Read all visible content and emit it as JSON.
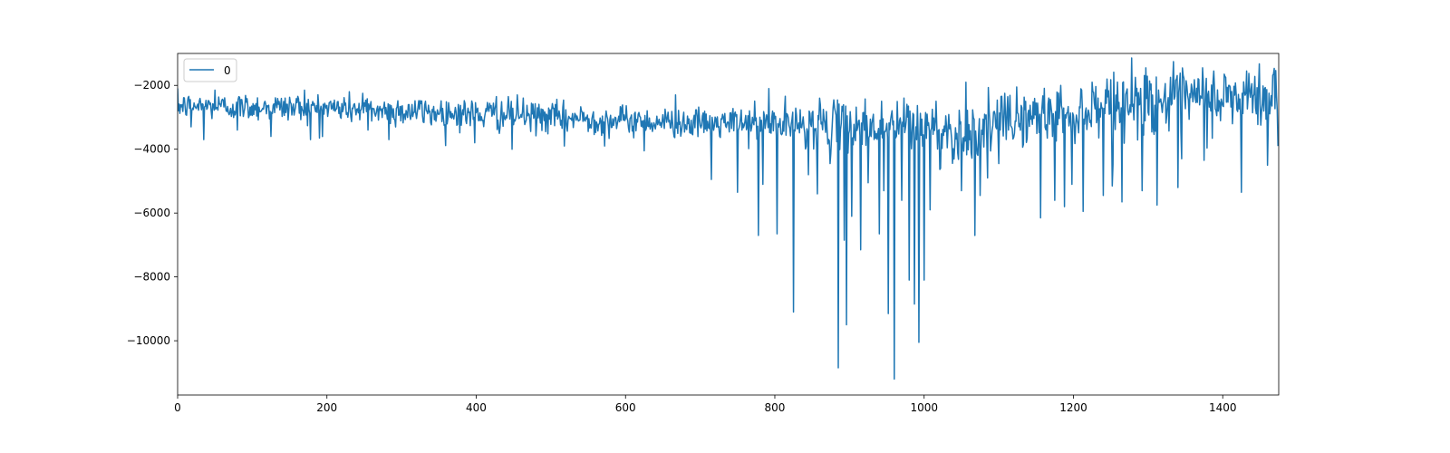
{
  "chart_data": {
    "type": "line",
    "title": "",
    "xlabel": "",
    "ylabel": "",
    "xlim": [
      0,
      1475
    ],
    "ylim": [
      -11700,
      -1000
    ],
    "x_ticks": [
      0,
      200,
      400,
      600,
      800,
      1000,
      1200,
      1400
    ],
    "y_ticks": [
      -2000,
      -4000,
      -6000,
      -8000,
      -10000
    ],
    "grid": false,
    "legend_position": "top-left",
    "series": [
      {
        "name": "0",
        "color": "#1f77b4",
        "n_points": 1475,
        "trend_knots": {
          "x": [
            0,
            200,
            400,
            600,
            700,
            800,
            900,
            1000,
            1050,
            1100,
            1200,
            1300,
            1400,
            1474
          ],
          "y": [
            -2650,
            -2700,
            -2900,
            -3100,
            -3200,
            -3200,
            -3250,
            -3250,
            -3600,
            -3200,
            -2800,
            -2500,
            -2450,
            -2400
          ]
        },
        "noise_knots": {
          "x": [
            0,
            400,
            700,
            800,
            1000,
            1050,
            1100,
            1200,
            1300,
            1474
          ],
          "y": [
            200,
            250,
            220,
            300,
            450,
            450,
            400,
            450,
            500,
            500
          ]
        },
        "negative_spikes": [
          {
            "x": 18,
            "y": -3300
          },
          {
            "x": 35,
            "y": -3700
          },
          {
            "x": 80,
            "y": -3400
          },
          {
            "x": 125,
            "y": -3600
          },
          {
            "x": 178,
            "y": -3700
          },
          {
            "x": 190,
            "y": -3650
          },
          {
            "x": 255,
            "y": -3400
          },
          {
            "x": 283,
            "y": -3700
          },
          {
            "x": 398,
            "y": -3800
          },
          {
            "x": 448,
            "y": -4000
          },
          {
            "x": 518,
            "y": -3900
          },
          {
            "x": 572,
            "y": -3900
          },
          {
            "x": 625,
            "y": -4050
          },
          {
            "x": 715,
            "y": -4950
          },
          {
            "x": 750,
            "y": -5350
          },
          {
            "x": 778,
            "y": -6700
          },
          {
            "x": 784,
            "y": -5100
          },
          {
            "x": 803,
            "y": -6650
          },
          {
            "x": 825,
            "y": -9100
          },
          {
            "x": 845,
            "y": -4800
          },
          {
            "x": 857,
            "y": -5400
          },
          {
            "x": 874,
            "y": -4450
          },
          {
            "x": 885,
            "y": -10850
          },
          {
            "x": 893,
            "y": -6850
          },
          {
            "x": 896,
            "y": -9500
          },
          {
            "x": 903,
            "y": -6100
          },
          {
            "x": 915,
            "y": -7150
          },
          {
            "x": 925,
            "y": -5050
          },
          {
            "x": 940,
            "y": -6650
          },
          {
            "x": 946,
            "y": -5300
          },
          {
            "x": 952,
            "y": -9150
          },
          {
            "x": 960,
            "y": -11200
          },
          {
            "x": 970,
            "y": -5600
          },
          {
            "x": 980,
            "y": -8100
          },
          {
            "x": 987,
            "y": -8850
          },
          {
            "x": 993,
            "y": -10050
          },
          {
            "x": 1000,
            "y": -8100
          },
          {
            "x": 1008,
            "y": -5900
          },
          {
            "x": 1022,
            "y": -4600
          },
          {
            "x": 1050,
            "y": -5300
          },
          {
            "x": 1068,
            "y": -6700
          },
          {
            "x": 1075,
            "y": -5450
          },
          {
            "x": 1085,
            "y": -4900
          },
          {
            "x": 1100,
            "y": -4450
          },
          {
            "x": 1156,
            "y": -6150
          },
          {
            "x": 1175,
            "y": -5600
          },
          {
            "x": 1188,
            "y": -5800
          },
          {
            "x": 1198,
            "y": -5100
          },
          {
            "x": 1213,
            "y": -5950
          },
          {
            "x": 1240,
            "y": -5450
          },
          {
            "x": 1252,
            "y": -5150
          },
          {
            "x": 1265,
            "y": -5650
          },
          {
            "x": 1292,
            "y": -5300
          },
          {
            "x": 1297,
            "y": -5700
          },
          {
            "x": 1312,
            "y": -5750
          },
          {
            "x": 1340,
            "y": -5200
          },
          {
            "x": 1345,
            "y": -4300
          },
          {
            "x": 1375,
            "y": -4350
          },
          {
            "x": 1425,
            "y": -5350
          },
          {
            "x": 1460,
            "y": -4500
          },
          {
            "x": 1474,
            "y": -3900
          }
        ],
        "positive_spikes": [
          {
            "x": 50,
            "y": -2150
          },
          {
            "x": 170,
            "y": -2150
          },
          {
            "x": 248,
            "y": -2250
          },
          {
            "x": 427,
            "y": -2350
          },
          {
            "x": 455,
            "y": -2300
          },
          {
            "x": 667,
            "y": -2300
          },
          {
            "x": 792,
            "y": -2100
          },
          {
            "x": 860,
            "y": -2400
          },
          {
            "x": 1056,
            "y": -1900
          },
          {
            "x": 1108,
            "y": -2250
          },
          {
            "x": 1124,
            "y": -2050
          },
          {
            "x": 1183,
            "y": -2000
          },
          {
            "x": 1225,
            "y": -1900
          },
          {
            "x": 1245,
            "y": -1800
          },
          {
            "x": 1283,
            "y": -1750
          },
          {
            "x": 1297,
            "y": -1450
          },
          {
            "x": 1330,
            "y": -1750
          },
          {
            "x": 1373,
            "y": -1450
          },
          {
            "x": 1402,
            "y": -1650
          },
          {
            "x": 1432,
            "y": -1550
          },
          {
            "x": 1468,
            "y": -1650
          }
        ]
      }
    ]
  }
}
